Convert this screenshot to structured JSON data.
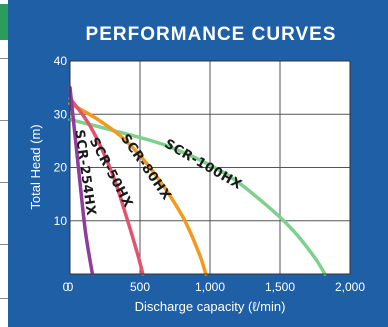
{
  "chart_data": {
    "type": "line",
    "title": "PERFORMANCE CURVES",
    "xlabel": "Discharge capacity (ℓ/min)",
    "ylabel": "Total Head (m)",
    "xlim": [
      0,
      2000
    ],
    "ylim": [
      0,
      40
    ],
    "x_ticks": [
      {
        "value": 0,
        "label": "0"
      },
      {
        "value": 500,
        "label": "500"
      },
      {
        "value": 1000,
        "label": "1,000"
      },
      {
        "value": 1500,
        "label": "1,500"
      },
      {
        "value": 2000,
        "label": "2,000"
      }
    ],
    "y_ticks": [
      {
        "value": 10,
        "label": "10"
      },
      {
        "value": 20,
        "label": "20"
      },
      {
        "value": 30,
        "label": "30"
      },
      {
        "value": 40,
        "label": "40"
      }
    ],
    "grid": true,
    "series": [
      {
        "name": "SCR-254HX",
        "color": "#8e3d9a",
        "x": [
          0,
          40,
          80,
          110,
          140,
          160
        ],
        "y": [
          35,
          25,
          15,
          8,
          3,
          0
        ],
        "label_at": {
          "x": 105,
          "y": 19,
          "angle": 82
        }
      },
      {
        "name": "SCR-50HX",
        "color": "#e0546d",
        "x": [
          0,
          150,
          300,
          400,
          480,
          520
        ],
        "y": [
          33,
          27.5,
          19,
          11,
          4,
          0
        ],
        "label_at": {
          "x": 290,
          "y": 19,
          "angle": 62
        }
      },
      {
        "name": "SCR-80HX",
        "color": "#f39a1e",
        "x": [
          0,
          200,
          400,
          600,
          800,
          920,
          970
        ],
        "y": [
          32,
          29,
          25,
          19,
          11,
          4,
          0
        ],
        "label_at": {
          "x": 540,
          "y": 20,
          "angle": 55
        }
      },
      {
        "name": "SCR-100HX",
        "color": "#7fcf8e",
        "x": [
          0,
          300,
          700,
          1100,
          1400,
          1600,
          1750,
          1820
        ],
        "y": [
          29,
          27,
          24,
          19,
          13,
          8,
          3,
          0
        ],
        "label_at": {
          "x": 950,
          "y": 20.5,
          "angle": 30
        }
      }
    ]
  }
}
